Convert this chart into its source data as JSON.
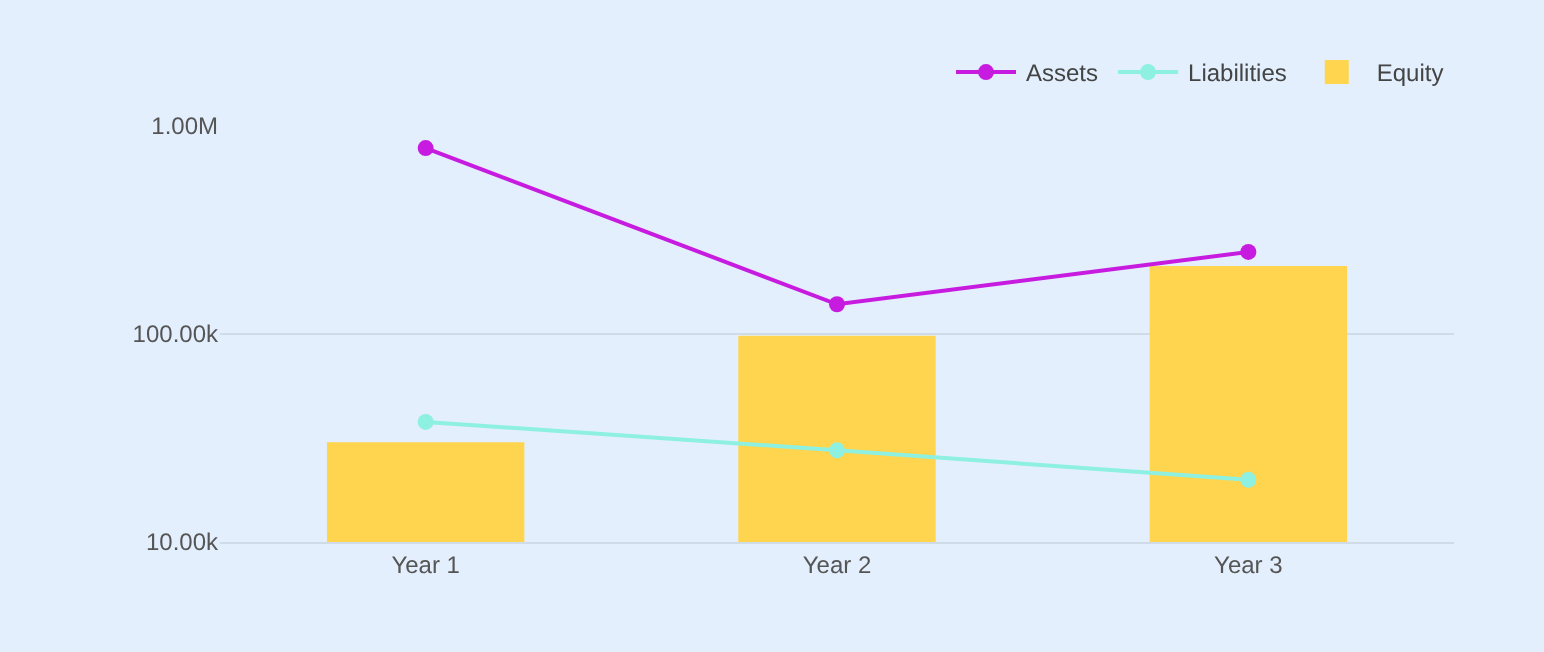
{
  "chart_data": {
    "type": "bar",
    "categories": [
      "Year 1",
      "Year 2",
      "Year 3"
    ],
    "series": [
      {
        "name": "Assets",
        "type": "line",
        "color": "#c71be0",
        "values": [
          783000,
          139000,
          248000
        ]
      },
      {
        "name": "Liabilities",
        "type": "line",
        "color": "#8ef0e0",
        "values": [
          37800,
          27600,
          19900
        ]
      },
      {
        "name": "Equity",
        "color": "#ffd54f",
        "values": [
          30200,
          98000,
          212000
        ]
      }
    ],
    "log": true,
    "ylim": [
      10000,
      1000000
    ],
    "yticks": [
      {
        "value": 10000,
        "label": "10.00k"
      },
      {
        "value": 100000,
        "label": "100.00k"
      },
      {
        "value": 1000000,
        "label": "1.00M"
      }
    ],
    "grid": "y",
    "legend": "top right",
    "marker": "circle",
    "line_style": "solid"
  }
}
